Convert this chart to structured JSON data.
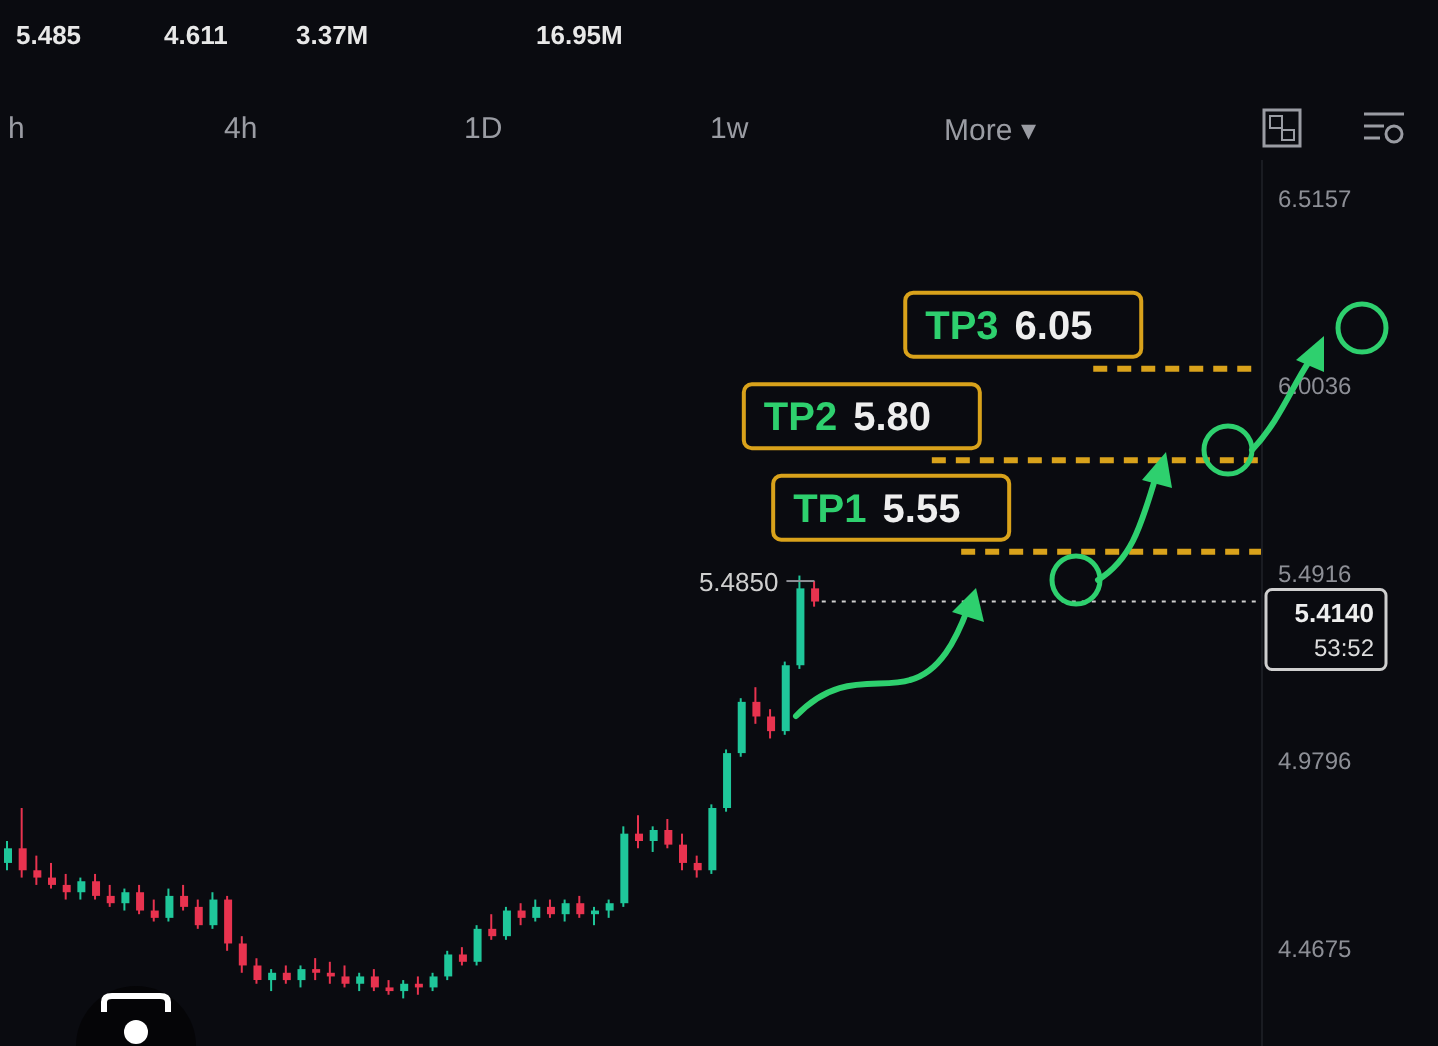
{
  "chart_data": {
    "type": "candlestick",
    "categories": [
      null,
      null,
      null,
      null,
      null,
      null,
      null,
      null,
      null,
      null,
      null,
      null,
      null,
      null,
      null,
      null,
      null,
      null,
      null,
      null,
      null,
      null,
      null,
      null,
      null,
      null,
      null,
      null,
      null,
      null,
      null,
      null,
      null,
      null,
      null,
      null,
      null,
      null,
      null,
      null,
      null,
      null,
      null,
      null,
      null,
      null,
      null,
      null,
      null,
      null,
      null,
      null,
      null,
      null,
      null,
      null,
      null,
      null,
      null,
      null,
      null,
      null,
      null,
      null,
      null,
      null,
      null,
      null,
      null,
      null,
      null,
      null,
      null,
      null,
      null,
      null,
      null,
      null,
      null,
      null,
      null,
      null,
      null,
      null,
      null,
      null
    ],
    "ohlc": [
      [
        4.7,
        4.76,
        4.68,
        4.74
      ],
      [
        4.74,
        4.85,
        4.66,
        4.68
      ],
      [
        4.68,
        4.72,
        4.64,
        4.66
      ],
      [
        4.66,
        4.7,
        4.63,
        4.64
      ],
      [
        4.64,
        4.67,
        4.6,
        4.62
      ],
      [
        4.62,
        4.66,
        4.6,
        4.65
      ],
      [
        4.65,
        4.67,
        4.6,
        4.61
      ],
      [
        4.61,
        4.64,
        4.58,
        4.59
      ],
      [
        4.59,
        4.63,
        4.57,
        4.62
      ],
      [
        4.62,
        4.64,
        4.56,
        4.57
      ],
      [
        4.57,
        4.6,
        4.54,
        4.55
      ],
      [
        4.55,
        4.63,
        4.54,
        4.61
      ],
      [
        4.61,
        4.64,
        4.57,
        4.58
      ],
      [
        4.58,
        4.6,
        4.52,
        4.53
      ],
      [
        4.53,
        4.62,
        4.52,
        4.6
      ],
      [
        4.6,
        4.61,
        4.46,
        4.48
      ],
      [
        4.48,
        4.5,
        4.4,
        4.42
      ],
      [
        4.42,
        4.44,
        4.37,
        4.38
      ],
      [
        4.38,
        4.41,
        4.35,
        4.4
      ],
      [
        4.4,
        4.42,
        4.37,
        4.38
      ],
      [
        4.38,
        4.42,
        4.36,
        4.41
      ],
      [
        4.41,
        4.44,
        4.38,
        4.4
      ],
      [
        4.4,
        4.43,
        4.37,
        4.39
      ],
      [
        4.39,
        4.42,
        4.36,
        4.37
      ],
      [
        4.37,
        4.4,
        4.35,
        4.39
      ],
      [
        4.39,
        4.41,
        4.35,
        4.36
      ],
      [
        4.36,
        4.38,
        4.34,
        4.35
      ],
      [
        4.35,
        4.38,
        4.33,
        4.37
      ],
      [
        4.37,
        4.39,
        4.34,
        4.36
      ],
      [
        4.36,
        4.4,
        4.35,
        4.39
      ],
      [
        4.39,
        4.46,
        4.38,
        4.45
      ],
      [
        4.45,
        4.47,
        4.42,
        4.43
      ],
      [
        4.43,
        4.53,
        4.42,
        4.52
      ],
      [
        4.52,
        4.56,
        4.49,
        4.5
      ],
      [
        4.5,
        4.58,
        4.49,
        4.57
      ],
      [
        4.57,
        4.59,
        4.53,
        4.55
      ],
      [
        4.55,
        4.6,
        4.54,
        4.58
      ],
      [
        4.58,
        4.6,
        4.55,
        4.56
      ],
      [
        4.56,
        4.6,
        4.54,
        4.59
      ],
      [
        4.59,
        4.61,
        4.55,
        4.56
      ],
      [
        4.56,
        4.58,
        4.53,
        4.57
      ],
      [
        4.57,
        4.6,
        4.55,
        4.59
      ],
      [
        4.59,
        4.8,
        4.58,
        4.78
      ],
      [
        4.78,
        4.83,
        4.74,
        4.76
      ],
      [
        4.76,
        4.8,
        4.73,
        4.79
      ],
      [
        4.79,
        4.82,
        4.74,
        4.75
      ],
      [
        4.75,
        4.78,
        4.68,
        4.7
      ],
      [
        4.7,
        4.72,
        4.66,
        4.68
      ],
      [
        4.68,
        4.86,
        4.67,
        4.85
      ],
      [
        4.85,
        5.01,
        4.84,
        5.0
      ],
      [
        5.0,
        5.15,
        4.99,
        5.14
      ],
      [
        5.14,
        5.18,
        5.08,
        5.1
      ],
      [
        5.1,
        5.12,
        5.04,
        5.06
      ],
      [
        5.06,
        5.25,
        5.05,
        5.24
      ],
      [
        5.24,
        5.485,
        5.23,
        5.45
      ],
      [
        5.45,
        5.47,
        5.4,
        5.414
      ],
      null,
      null,
      null,
      null,
      null,
      null,
      null,
      null,
      null,
      null,
      null,
      null,
      null,
      null,
      null,
      null,
      null,
      null,
      null,
      null,
      null,
      null,
      null,
      null,
      null,
      null,
      null,
      null,
      null,
      null
    ],
    "ylim": [
      4.2,
      6.62
    ],
    "yticks": [
      4.4675,
      4.9796,
      5.4916,
      6.0036,
      6.5157
    ],
    "tick_labels": "y",
    "ref_lines": [
      {
        "axis": "y",
        "value": 5.55,
        "label": "TP1 5.55",
        "color": "#d9a21b",
        "line_style": "dashed"
      },
      {
        "axis": "y",
        "value": 5.8,
        "label": "TP2 5.80",
        "color": "#d9a21b",
        "line_style": "dashed"
      },
      {
        "axis": "y",
        "value": 6.05,
        "label": "TP3 6.05",
        "color": "#d9a21b",
        "line_style": "dashed"
      },
      {
        "axis": "y",
        "value": 5.414,
        "label": "5.4140 53:52",
        "color": "#cfcfcf",
        "line_style": "dotted"
      }
    ],
    "annotations": [
      "5.485",
      "4.611",
      "3.37M",
      "16.95M",
      "h",
      "4h",
      "1D",
      "1w",
      "More ▾",
      "5.4850"
    ]
  }
}
